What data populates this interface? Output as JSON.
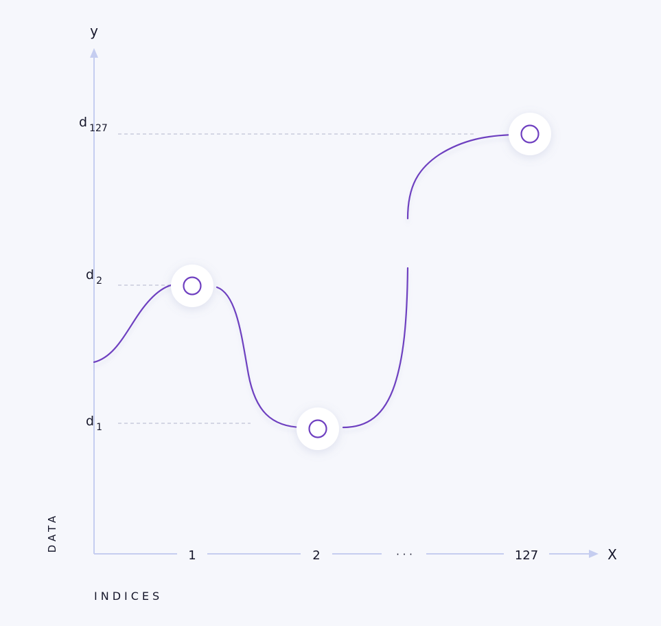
{
  "axes": {
    "y_label": "y",
    "x_label": "X",
    "vertical_title": "DATA",
    "horizontal_title": "INDICES"
  },
  "ticks": {
    "x": [
      "1",
      "2",
      "· · ·",
      "127"
    ]
  },
  "y_levels": [
    {
      "base": "d",
      "sub": "1"
    },
    {
      "base": "d",
      "sub": "2"
    },
    {
      "base": "d",
      "sub": "127"
    }
  ],
  "colors": {
    "background": "#f6f7fc",
    "axis": "#c5cdf0",
    "curve": "#6e3fc0",
    "guide": "#c9cbdb",
    "text": "#15162a"
  }
}
